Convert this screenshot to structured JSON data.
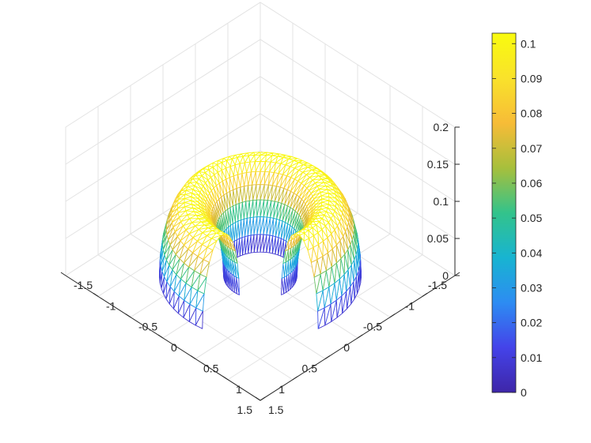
{
  "chart_data": {
    "type": "surface",
    "title": "",
    "z_ticks": [
      "0",
      "0.05",
      "0.1",
      "0.15",
      "0.2"
    ],
    "x_ticks": [
      "-1.5",
      "-1",
      "-0.5",
      "0",
      "0.5",
      "1",
      "1.5"
    ],
    "y_ticks": [
      "1.5",
      "1",
      "0.5",
      "0",
      "-0.5",
      "-1",
      "-1.5"
    ],
    "zlim": [
      0,
      0.2
    ],
    "xlim": [
      -1.5,
      1.5
    ],
    "ylim": [
      -1.5,
      1.5
    ],
    "colorbar_ticks": [
      "0",
      "0.01",
      "0.02",
      "0.03",
      "0.04",
      "0.05",
      "0.06",
      "0.07",
      "0.08",
      "0.09",
      "0.1"
    ],
    "colorbar_range": [
      0,
      0.103
    ],
    "colormap": [
      "#3e26a8",
      "#4443e9",
      "#2d8cf2",
      "#18b4d1",
      "#33c38b",
      "#a7bf3c",
      "#f7bc37",
      "#f9e22b",
      "#f9fb0e"
    ],
    "surface": {
      "shape": "open torus (horseshoe) opening toward front",
      "major_radius": 0.75,
      "tube_radius": 0.35,
      "peak_height": 0.103,
      "gap_angle_deg": 70
    },
    "grid": true
  }
}
